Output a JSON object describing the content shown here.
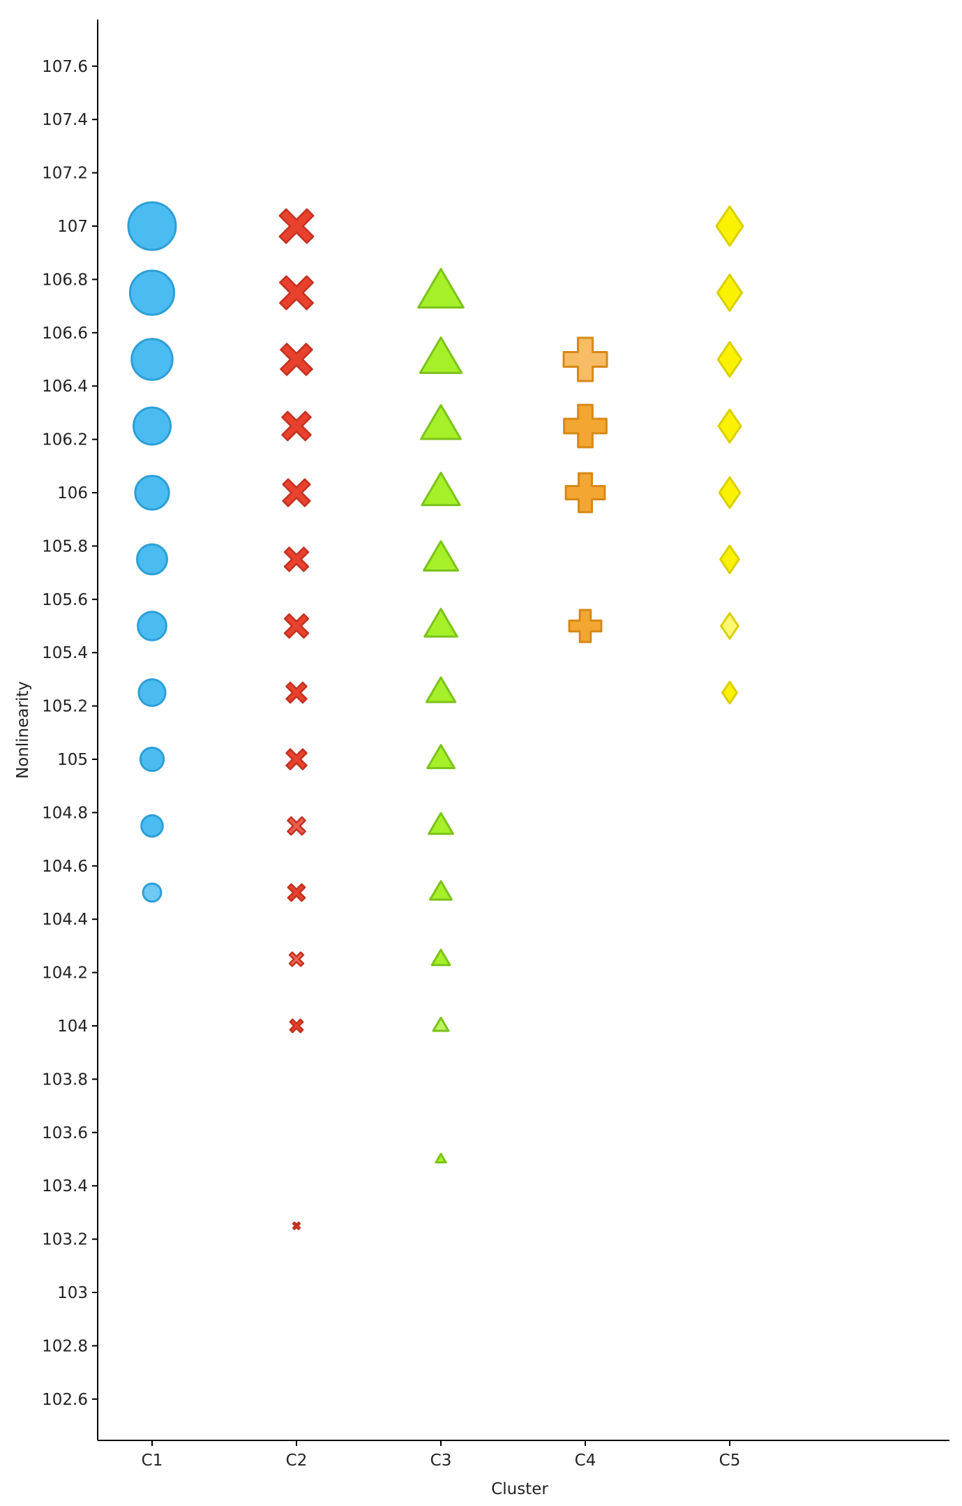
{
  "chart_data": {
    "type": "scatter",
    "title": "",
    "xlabel": "Cluster",
    "ylabel": "Nonlinearity",
    "categories": [
      "C1",
      "C2",
      "C3",
      "C4",
      "C5"
    ],
    "ylim": [
      102.47,
      107.77
    ],
    "yticks": [
      102.6,
      102.8,
      103,
      103.2,
      103.4,
      103.6,
      103.8,
      104,
      104.2,
      104.4,
      104.6,
      104.8,
      105,
      105.2,
      105.4,
      105.6,
      105.8,
      106,
      106.2,
      106.4,
      106.6,
      106.8,
      107,
      107.2,
      107.4,
      107.6
    ],
    "ytick_labels": [
      "102.6",
      "102.8",
      "103",
      "103.2",
      "103.4",
      "103.6",
      "103.8",
      "104",
      "104.2",
      "104.4",
      "104.6",
      "104.8",
      "105",
      "105.2",
      "105.4",
      "105.6",
      "105.8",
      "106",
      "106.2",
      "106.4",
      "106.6",
      "106.8",
      "107",
      "107.2",
      "107.4",
      "107.6"
    ],
    "grid": false,
    "legend": "none",
    "series": [
      {
        "category": "C1",
        "marker": "circle",
        "color": "#4bbcf2",
        "edge_color": "#2c9fd6",
        "points": [
          {
            "y": 107.0,
            "size": 1.0
          },
          {
            "y": 106.75,
            "size": 0.93
          },
          {
            "y": 106.5,
            "size": 0.86
          },
          {
            "y": 106.25,
            "size": 0.78
          },
          {
            "y": 106.0,
            "size": 0.71
          },
          {
            "y": 105.75,
            "size": 0.63
          },
          {
            "y": 105.5,
            "size": 0.6
          },
          {
            "y": 105.25,
            "size": 0.56
          },
          {
            "y": 105.0,
            "size": 0.49
          },
          {
            "y": 104.75,
            "size": 0.45
          },
          {
            "y": 104.5,
            "size": 0.38,
            "alpha": 0.8
          }
        ]
      },
      {
        "category": "C2",
        "marker": "x",
        "color": "#e8412d",
        "edge_color": "#c2311f",
        "points": [
          {
            "y": 107.0,
            "size": 1.0
          },
          {
            "y": 106.75,
            "size": 0.98
          },
          {
            "y": 106.5,
            "size": 0.93
          },
          {
            "y": 106.25,
            "size": 0.85
          },
          {
            "y": 106.0,
            "size": 0.8
          },
          {
            "y": 105.75,
            "size": 0.7
          },
          {
            "y": 105.5,
            "size": 0.7
          },
          {
            "y": 105.25,
            "size": 0.6
          },
          {
            "y": 105.0,
            "size": 0.6
          },
          {
            "y": 104.75,
            "size": 0.52,
            "alpha": 0.85
          },
          {
            "y": 104.5,
            "size": 0.5
          },
          {
            "y": 104.25,
            "size": 0.41,
            "alpha": 0.8
          },
          {
            "y": 104.0,
            "size": 0.38
          },
          {
            "y": 103.25,
            "size": 0.2
          }
        ]
      },
      {
        "category": "C3",
        "marker": "triangle",
        "color": "#a6f02a",
        "edge_color": "#7cc21a",
        "points": [
          {
            "y": 106.75,
            "size": 1.0
          },
          {
            "y": 106.5,
            "size": 0.92
          },
          {
            "y": 106.25,
            "size": 0.88
          },
          {
            "y": 106.0,
            "size": 0.84
          },
          {
            "y": 105.75,
            "size": 0.76
          },
          {
            "y": 105.5,
            "size": 0.72
          },
          {
            "y": 105.25,
            "size": 0.64
          },
          {
            "y": 105.0,
            "size": 0.6
          },
          {
            "y": 104.75,
            "size": 0.54
          },
          {
            "y": 104.5,
            "size": 0.48
          },
          {
            "y": 104.25,
            "size": 0.4
          },
          {
            "y": 104.0,
            "size": 0.34,
            "alpha": 0.75
          },
          {
            "y": 103.5,
            "size": 0.22
          }
        ]
      },
      {
        "category": "C4",
        "marker": "plus",
        "color": "#f4a632",
        "edge_color": "#d68916",
        "points": [
          {
            "y": 106.5,
            "size": 1.0,
            "alpha": 0.75
          },
          {
            "y": 106.25,
            "size": 0.98
          },
          {
            "y": 106.0,
            "size": 0.9
          },
          {
            "y": 105.5,
            "size": 0.74
          }
        ]
      },
      {
        "category": "C5",
        "marker": "diamond",
        "color": "#faf200",
        "edge_color": "#d9cf00",
        "points": [
          {
            "y": 107.0,
            "size": 1.0
          },
          {
            "y": 106.75,
            "size": 0.92
          },
          {
            "y": 106.5,
            "size": 0.88
          },
          {
            "y": 106.25,
            "size": 0.84
          },
          {
            "y": 106.0,
            "size": 0.78
          },
          {
            "y": 105.75,
            "size": 0.7
          },
          {
            "y": 105.5,
            "size": 0.65,
            "alpha": 0.55
          },
          {
            "y": 105.25,
            "size": 0.55
          }
        ]
      }
    ]
  }
}
